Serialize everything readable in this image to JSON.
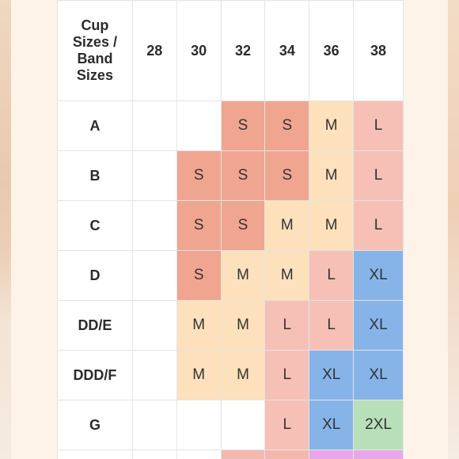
{
  "table": {
    "corner_label": "Cup Sizes / Band Sizes",
    "band_sizes": [
      "28",
      "30",
      "32",
      "34",
      "36",
      "38"
    ],
    "rows": [
      {
        "cup": "A",
        "sizes": [
          "",
          "",
          "S",
          "S",
          "M",
          "L"
        ]
      },
      {
        "cup": "B",
        "sizes": [
          "",
          "S",
          "S",
          "S",
          "M",
          "L"
        ]
      },
      {
        "cup": "C",
        "sizes": [
          "",
          "S",
          "S",
          "M",
          "M",
          "L"
        ]
      },
      {
        "cup": "D",
        "sizes": [
          "",
          "S",
          "M",
          "M",
          "L",
          "XL"
        ]
      },
      {
        "cup": "DD/E",
        "sizes": [
          "",
          "M",
          "M",
          "L",
          "L",
          "XL"
        ]
      },
      {
        "cup": "DDD/F",
        "sizes": [
          "",
          "M",
          "M",
          "L",
          "XL",
          "XL"
        ]
      },
      {
        "cup": "G",
        "sizes": [
          "",
          "",
          "",
          "L",
          "XL",
          "2XL"
        ]
      }
    ],
    "partial_row_colors": [
      "#ffffff",
      "#ffffff",
      "#ffffff",
      "#f4b7ae",
      "#f4b7ae",
      "#e9a6e8",
      "#e9a6e8"
    ]
  },
  "colors": {
    "S": "#f0a590",
    "M": "#fde0bc",
    "L": "#f6c0b6",
    "XL": "#86b4e9",
    "2XL": "#b8dfb9",
    "empty": "#ffffff"
  }
}
